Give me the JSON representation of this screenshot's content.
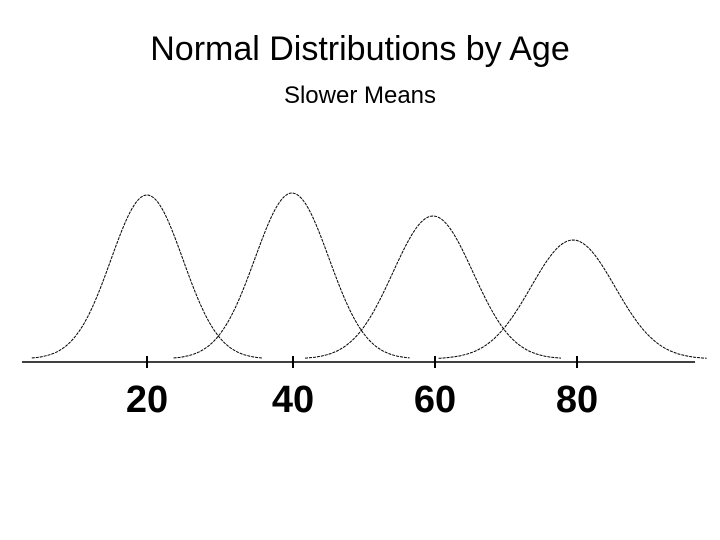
{
  "header": {
    "title": "Normal Distributions by Age",
    "subtitle": "Slower Means"
  },
  "axis": {
    "labels": [
      "20",
      "40",
      "60",
      "80"
    ]
  }
}
